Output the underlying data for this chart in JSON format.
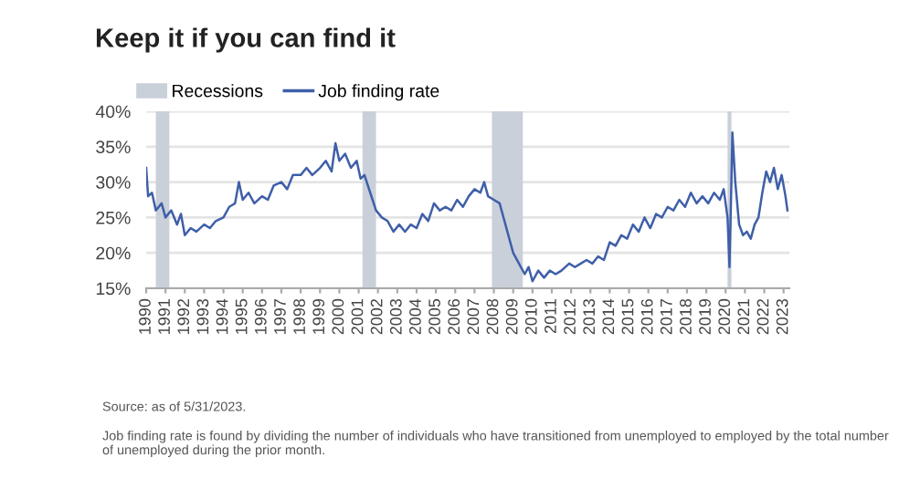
{
  "chart_data": {
    "type": "line",
    "title": "Keep it if you can find it",
    "annotations": [
      "Source: as of 5/31/2023.",
      "Job finding rate is found by dividing the number of individuals who have transitioned from unemployed to employed by the total number of unemployed during the prior month."
    ],
    "series": [
      {
        "name": "Job finding rate",
        "color": "#3f5fa8",
        "x": [
          1990.0,
          1990.1,
          1990.3,
          1990.5,
          1990.8,
          1991.0,
          1991.3,
          1991.6,
          1991.8,
          1992.0,
          1992.3,
          1992.6,
          1993.0,
          1993.3,
          1993.6,
          1994.0,
          1994.3,
          1994.6,
          1994.8,
          1995.0,
          1995.3,
          1995.6,
          1996.0,
          1996.3,
          1996.6,
          1997.0,
          1997.3,
          1997.6,
          1998.0,
          1998.3,
          1998.6,
          1999.0,
          1999.3,
          1999.6,
          1999.8,
          2000.0,
          2000.3,
          2000.6,
          2000.9,
          2001.1,
          2001.3,
          2001.6,
          2001.9,
          2002.2,
          2002.5,
          2002.8,
          2003.1,
          2003.4,
          2003.7,
          2004.0,
          2004.3,
          2004.6,
          2004.9,
          2005.2,
          2005.5,
          2005.8,
          2006.1,
          2006.4,
          2006.7,
          2007.0,
          2007.3,
          2007.5,
          2007.7,
          2008.0,
          2008.3,
          2008.5,
          2008.8,
          2009.0,
          2009.3,
          2009.6,
          2009.8,
          2010.0,
          2010.3,
          2010.6,
          2010.9,
          2011.2,
          2011.5,
          2011.9,
          2012.2,
          2012.5,
          2012.8,
          2013.1,
          2013.4,
          2013.7,
          2014.0,
          2014.3,
          2014.6,
          2014.9,
          2015.2,
          2015.5,
          2015.8,
          2016.1,
          2016.4,
          2016.7,
          2017.0,
          2017.3,
          2017.6,
          2017.9,
          2018.2,
          2018.5,
          2018.8,
          2019.1,
          2019.4,
          2019.7,
          2019.9,
          2020.1,
          2020.2,
          2020.3,
          2020.35,
          2020.5,
          2020.7,
          2020.9,
          2021.1,
          2021.3,
          2021.5,
          2021.7,
          2021.9,
          2022.1,
          2022.3,
          2022.5,
          2022.7,
          2022.9,
          2023.1,
          2023.2
        ],
        "values": [
          32,
          28,
          28.5,
          26,
          27,
          25,
          26,
          24,
          25.5,
          22.5,
          23.5,
          23,
          24,
          23.5,
          24.5,
          25,
          26.5,
          27,
          30,
          27.5,
          28.5,
          27,
          28,
          27.5,
          29.5,
          30,
          29,
          31,
          31,
          32,
          31,
          32,
          33,
          31.5,
          35.5,
          33,
          34,
          32,
          33,
          30.5,
          31,
          28.5,
          26,
          25,
          24.5,
          23,
          24,
          23,
          24,
          23.5,
          25.5,
          24.5,
          27,
          26,
          26.5,
          26,
          27.5,
          26.5,
          28,
          29,
          28.5,
          30,
          28,
          27.5,
          27,
          25,
          22,
          20,
          18.5,
          17,
          18,
          16,
          17.5,
          16.5,
          17.5,
          17,
          17.5,
          18.5,
          18,
          18.5,
          19,
          18.5,
          19.5,
          19,
          21.5,
          21,
          22.5,
          22,
          24,
          23,
          25,
          23.5,
          25.5,
          25,
          26.5,
          26,
          27.5,
          26.5,
          28.5,
          27,
          28,
          27,
          28.5,
          27.5,
          29,
          25,
          18,
          30,
          37,
          30,
          24,
          22.5,
          23,
          22,
          24,
          25,
          28.5,
          31.5,
          30,
          32,
          29,
          31,
          28,
          26
        ]
      }
    ],
    "bands": [
      {
        "axis": "x",
        "from": 1990.5,
        "to": 1991.2,
        "label": "Recessions",
        "color": "#c9d0da"
      },
      {
        "axis": "x",
        "from": 2001.2,
        "to": 2001.9,
        "color": "#c9d0da"
      },
      {
        "axis": "x",
        "from": 2007.9,
        "to": 2009.5,
        "color": "#c9d0da"
      },
      {
        "axis": "x",
        "from": 2020.1,
        "to": 2020.3,
        "color": "#c9d0da"
      }
    ],
    "xlim": [
      1990,
      2023.3
    ],
    "xticks": [
      1990,
      1991,
      1992,
      1993,
      1994,
      1995,
      1996,
      1997,
      1998,
      1999,
      2000,
      2001,
      2002,
      2003,
      2004,
      2005,
      2006,
      2007,
      2008,
      2009,
      2010,
      2011,
      2012,
      2013,
      2014,
      2015,
      2016,
      2017,
      2018,
      2019,
      2020,
      2021,
      2022,
      2023
    ],
    "ylim": [
      15,
      40
    ],
    "yticks": [
      {
        "value": 15,
        "label": "15%"
      },
      {
        "value": 20,
        "label": "20%"
      },
      {
        "value": 25,
        "label": "25%"
      },
      {
        "value": 30,
        "label": "30%"
      },
      {
        "value": 35,
        "label": "35%"
      },
      {
        "value": 40,
        "label": "40%"
      }
    ],
    "grid": "y",
    "legend": "top left"
  }
}
